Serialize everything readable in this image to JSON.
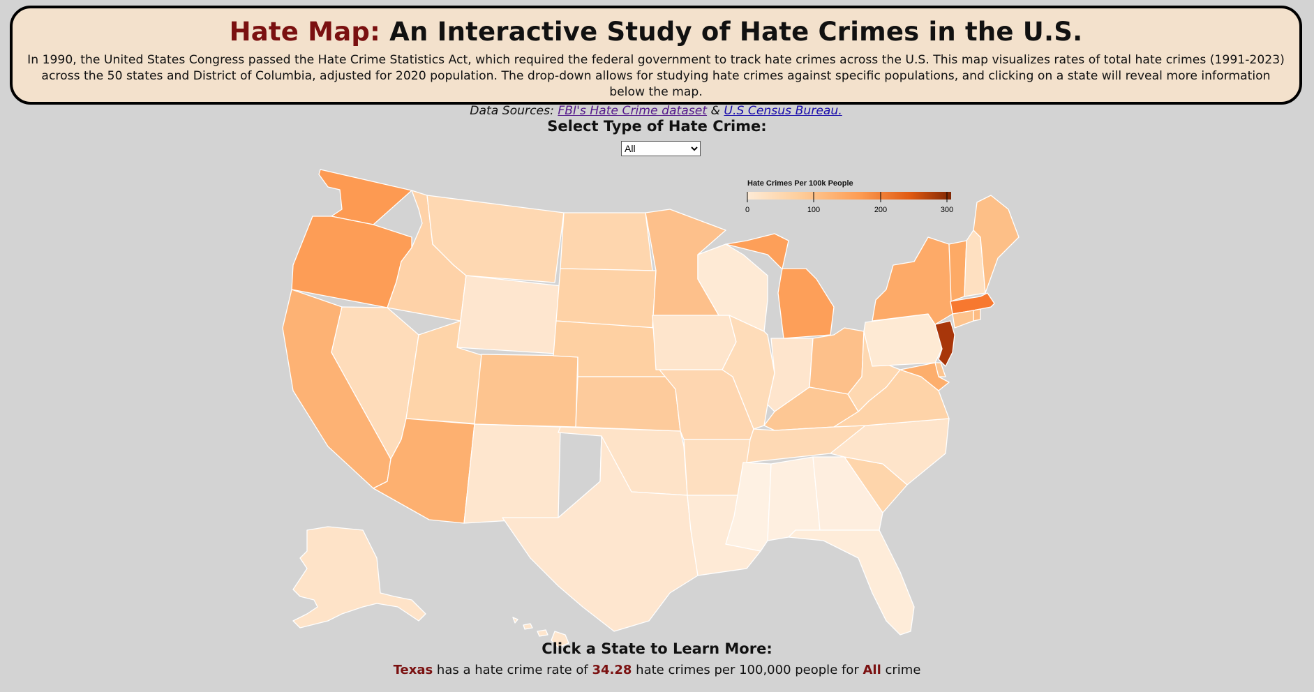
{
  "header": {
    "title_accent": "Hate Map:",
    "title_rest": "An Interactive Study of Hate Crimes in the U.S.",
    "description": "In 1990, the United States Congress passed the Hate Crime Statistics Act, which required the federal government to track hate crimes across the U.S. This map visualizes rates of total hate crimes (1991-2023) across the 50 states and District of Columbia, adjusted for 2020 population. The drop-down allows for studying hate crimes against specific populations, and clicking on a state will reveal more information below the map.",
    "sources_label": "Data Sources:",
    "source_fbi": "FBI's Hate Crime dataset",
    "sources_and": "&",
    "source_census": "U.S Census Bureau."
  },
  "controls": {
    "select_title": "Select Type of Hate Crime:",
    "selected_value": "All"
  },
  "legend": {
    "title": "Hate Crimes Per 100k People",
    "ticks": [
      "0",
      "100",
      "200",
      "300"
    ],
    "colors": [
      "#fdebd7",
      "#fdcf9e",
      "#fd9d54",
      "#e05a12",
      "#7f2704"
    ]
  },
  "map": {
    "default_color": "#fde3c8",
    "stroke_color": "#ffffff",
    "states": [
      {
        "name": "Washington",
        "color": "#fd9a52"
      },
      {
        "name": "Oregon",
        "color": "#fd9d56"
      },
      {
        "name": "California",
        "color": "#fdb274"
      },
      {
        "name": "Idaho",
        "color": "#fed2a8"
      },
      {
        "name": "Nevada",
        "color": "#fedcba"
      },
      {
        "name": "Montana",
        "color": "#fed8b2"
      },
      {
        "name": "Wyoming",
        "color": "#fee6cf"
      },
      {
        "name": "Utah",
        "color": "#fed4a9"
      },
      {
        "name": "Arizona",
        "color": "#fdb070"
      },
      {
        "name": "Colorado",
        "color": "#fdc48f"
      },
      {
        "name": "New Mexico",
        "color": "#fee6ce"
      },
      {
        "name": "North Dakota",
        "color": "#fed6ae"
      },
      {
        "name": "South Dakota",
        "color": "#fed2a6"
      },
      {
        "name": "Nebraska",
        "color": "#fed0a2"
      },
      {
        "name": "Kansas",
        "color": "#fdcb9c"
      },
      {
        "name": "Oklahoma",
        "color": "#fee3c8"
      },
      {
        "name": "Texas",
        "color": "#fee6cf"
      },
      {
        "name": "Minnesota",
        "color": "#fdc08b"
      },
      {
        "name": "Iowa",
        "color": "#fee5cc"
      },
      {
        "name": "Missouri",
        "color": "#fed6b0"
      },
      {
        "name": "Arkansas",
        "color": "#fedfc0"
      },
      {
        "name": "Louisiana",
        "color": "#feead6"
      },
      {
        "name": "Wisconsin",
        "color": "#feead5"
      },
      {
        "name": "Illinois",
        "color": "#fedcb9"
      },
      {
        "name": "Michigan",
        "color": "#fd9f59"
      },
      {
        "name": "Indiana",
        "color": "#fee5cd"
      },
      {
        "name": "Ohio",
        "color": "#fdc08a"
      },
      {
        "name": "Kentucky",
        "color": "#fdc794"
      },
      {
        "name": "Tennessee",
        "color": "#fed9b4"
      },
      {
        "name": "Mississippi",
        "color": "#fef1e3"
      },
      {
        "name": "Alabama",
        "color": "#feefe0"
      },
      {
        "name": "Georgia",
        "color": "#feeedf"
      },
      {
        "name": "Florida",
        "color": "#feecd9"
      },
      {
        "name": "South Carolina",
        "color": "#fed5ab"
      },
      {
        "name": "North Carolina",
        "color": "#fee4ca"
      },
      {
        "name": "Virginia",
        "color": "#fed3a8"
      },
      {
        "name": "West Virginia",
        "color": "#fed8b1"
      },
      {
        "name": "Pennsylvania",
        "color": "#feead4"
      },
      {
        "name": "New York",
        "color": "#fdaa68"
      },
      {
        "name": "New Jersey",
        "color": "#a8360a"
      },
      {
        "name": "Delaware",
        "color": "#fdc48e"
      },
      {
        "name": "Maryland",
        "color": "#fdae6c"
      },
      {
        "name": "Massachusetts",
        "color": "#f7782f"
      },
      {
        "name": "Connecticut",
        "color": "#fdc38d"
      },
      {
        "name": "Rhode Island",
        "color": "#fdbb82"
      },
      {
        "name": "Vermont",
        "color": "#fdaa66"
      },
      {
        "name": "New Hampshire",
        "color": "#fee0c1"
      },
      {
        "name": "Maine",
        "color": "#fdbf87"
      },
      {
        "name": "Alaska",
        "color": "#fee3c8"
      },
      {
        "name": "Hawaii",
        "color": "#fee5cc"
      }
    ]
  },
  "info": {
    "click_title": "Click a State to Learn More:",
    "state": "Texas",
    "text_1": "has a hate crime rate of",
    "rate": "34.28",
    "text_2": "hate crimes per 100,000 people for",
    "category": "All",
    "text_3": "crime"
  }
}
